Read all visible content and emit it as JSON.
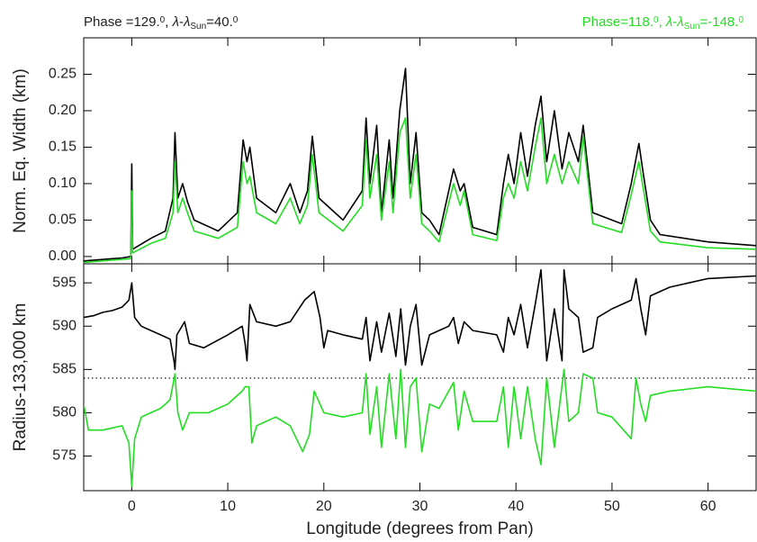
{
  "chart_data": [
    {
      "type": "line",
      "ylabel": "Norm. Eq. Width (km)",
      "annotations": [
        {
          "color": "#222222",
          "corner": "left",
          "parts": [
            {
              "text": "Phase =129."
            },
            {
              "text": "0",
              "sup": true
            },
            {
              "text": ", "
            },
            {
              "text": "λ",
              "italic": true
            },
            {
              "text": "-"
            },
            {
              "text": "λ",
              "italic": true
            },
            {
              "text": "Sun",
              "sub": true
            },
            {
              "text": "=40."
            },
            {
              "text": "0",
              "sup": true
            }
          ]
        },
        {
          "color": "#22dd22",
          "corner": "right",
          "parts": [
            {
              "text": "Phase=118."
            },
            {
              "text": "0",
              "sup": true
            },
            {
              "text": ", "
            },
            {
              "text": "λ",
              "italic": true
            },
            {
              "text": "-"
            },
            {
              "text": "λ",
              "italic": true
            },
            {
              "text": "Sun",
              "sub": true
            },
            {
              "text": "=-148."
            },
            {
              "text": "0",
              "sup": true
            }
          ]
        }
      ],
      "xlim": [
        -5,
        65
      ],
      "xticks": [
        0,
        10,
        20,
        30,
        40,
        50,
        60
      ],
      "ylim": [
        -0.01,
        0.3
      ],
      "yticks": [
        {
          "value": 0,
          "label": "0.00"
        },
        {
          "value": 0.05,
          "label": "0.05"
        },
        {
          "value": 0.1,
          "label": "0.10"
        },
        0.15,
        {
          "value": 0.2,
          "label": "0.20"
        },
        0.25
      ],
      "x": [
        -5,
        -1,
        -0.1,
        0,
        0.1,
        2,
        3.5,
        4.3,
        4.5,
        4.8,
        5.3,
        5.8,
        6.5,
        9,
        11,
        11.6,
        12,
        12.3,
        13,
        15,
        16.5,
        17.5,
        18.3,
        18.8,
        19.5,
        22,
        24,
        24.4,
        24.8,
        25.5,
        26,
        26.8,
        27.2,
        27.9,
        28.5,
        29,
        29.6,
        30.2,
        31,
        32,
        33.5,
        34.2,
        34.6,
        35.5,
        38,
        38.7,
        39.2,
        39.8,
        40.5,
        41.2,
        42,
        42.6,
        43.2,
        44,
        44.8,
        45.5,
        46.5,
        47,
        48,
        51,
        52,
        52.8,
        53.3,
        54,
        55,
        60,
        65
      ],
      "series": [
        {
          "color": "#000000",
          "values": [
            -0.006,
            -0.002,
            0.0,
            0.127,
            0.01,
            0.025,
            0.035,
            0.08,
            0.17,
            0.08,
            0.1,
            0.075,
            0.05,
            0.035,
            0.06,
            0.16,
            0.13,
            0.15,
            0.08,
            0.06,
            0.1,
            0.06,
            0.09,
            0.165,
            0.08,
            0.05,
            0.09,
            0.19,
            0.1,
            0.18,
            0.06,
            0.16,
            0.08,
            0.2,
            0.258,
            0.1,
            0.17,
            0.06,
            0.05,
            0.03,
            0.12,
            0.09,
            0.1,
            0.04,
            0.03,
            0.1,
            0.14,
            0.1,
            0.17,
            0.11,
            0.18,
            0.22,
            0.13,
            0.2,
            0.12,
            0.17,
            0.13,
            0.18,
            0.06,
            0.045,
            0.1,
            0.155,
            0.11,
            0.05,
            0.03,
            0.02,
            0.015
          ]
        },
        {
          "color": "#22dd22",
          "values": [
            -0.008,
            -0.004,
            -0.003,
            0.09,
            0.005,
            0.018,
            0.025,
            0.06,
            0.13,
            0.06,
            0.08,
            0.06,
            0.035,
            0.025,
            0.04,
            0.13,
            0.1,
            0.11,
            0.06,
            0.045,
            0.08,
            0.045,
            0.07,
            0.14,
            0.06,
            0.035,
            0.07,
            0.16,
            0.08,
            0.14,
            0.05,
            0.13,
            0.06,
            0.17,
            0.19,
            0.08,
            0.14,
            0.045,
            0.035,
            0.02,
            0.1,
            0.07,
            0.09,
            0.03,
            0.022,
            0.08,
            0.1,
            0.08,
            0.13,
            0.09,
            0.15,
            0.19,
            0.1,
            0.14,
            0.1,
            0.13,
            0.1,
            0.165,
            0.045,
            0.033,
            0.085,
            0.13,
            0.09,
            0.035,
            0.02,
            0.012,
            0.01
          ]
        }
      ]
    },
    {
      "type": "line",
      "ylabel": "Radius-133,000 km",
      "xlabel": "Longitude (degrees from Pan)",
      "xlim": [
        -5,
        65
      ],
      "xticks": [
        0,
        10,
        20,
        30,
        40,
        50,
        60
      ],
      "ylim": [
        571,
        597.2
      ],
      "yticks": [
        575,
        580,
        585,
        590,
        595
      ],
      "hline": 584,
      "series": [
        {
          "color": "#000000",
          "x": [
            -5,
            -4,
            -3,
            -2,
            -1,
            -0.3,
            0,
            0.3,
            1,
            2,
            3,
            4,
            4.4,
            4.5,
            4.7,
            5.5,
            6,
            7.5,
            10,
            11.5,
            11.8,
            12,
            12.3,
            13,
            15,
            16.5,
            18,
            19,
            19.6,
            20,
            20.4,
            22,
            24,
            24.4,
            24.8,
            25.5,
            26,
            26.8,
            27.5,
            28,
            28.5,
            29,
            29.6,
            30.2,
            31,
            32,
            33,
            33.5,
            34,
            34.6,
            35.5,
            38,
            38.7,
            39.2,
            39.8,
            40.5,
            41.2,
            42,
            42.6,
            43.2,
            44,
            44.8,
            45,
            45.5,
            46.5,
            47,
            48,
            48.5,
            50,
            52,
            52.5,
            53,
            53.5,
            54,
            56,
            58,
            60,
            65
          ],
          "values": [
            591,
            591.2,
            591.6,
            591.8,
            592.2,
            593,
            595,
            591,
            590,
            589.5,
            589,
            588.5,
            586,
            585,
            589,
            590.5,
            588,
            587.5,
            589,
            590,
            588,
            586,
            592.5,
            590.5,
            590,
            590.5,
            593,
            594,
            591,
            587.5,
            589.5,
            589,
            588.5,
            591,
            586,
            590.5,
            587,
            591.5,
            586.5,
            592,
            585.5,
            590,
            592.5,
            585.5,
            589,
            589.5,
            590,
            591,
            588,
            590.5,
            589.5,
            589,
            587,
            591,
            589,
            592.5,
            587.5,
            592.5,
            596.5,
            586,
            592,
            586,
            596.5,
            592,
            591,
            587,
            587.5,
            591,
            592,
            593,
            595.5,
            592,
            589,
            593.5,
            594.5,
            595,
            595.5,
            595.8
          ]
        },
        {
          "color": "#22dd22",
          "x": [
            -5,
            -4.5,
            -3,
            -1,
            -0.3,
            0,
            0.3,
            1,
            2,
            3,
            4,
            4.5,
            4.8,
            5.3,
            6,
            8,
            10,
            11.5,
            11.8,
            12.2,
            12.5,
            13,
            15,
            16.5,
            17.8,
            18.5,
            19,
            20,
            22,
            24,
            24.4,
            24.8,
            25.5,
            26,
            26.8,
            27.5,
            28,
            28.5,
            29,
            29.6,
            30.2,
            31,
            32,
            33.5,
            34,
            34.6,
            35.5,
            38,
            38.7,
            39.2,
            39.8,
            40.5,
            41.2,
            42,
            42.6,
            43.2,
            44,
            45,
            45.5,
            46.5,
            47,
            48,
            48.5,
            50,
            52,
            52.5,
            53,
            53.5,
            54,
            56,
            60,
            65
          ],
          "values": [
            581,
            578,
            578,
            578.5,
            576.5,
            571.5,
            577,
            579.5,
            580,
            580.5,
            581.5,
            584.5,
            580,
            578,
            580,
            580,
            581,
            582.5,
            583,
            583,
            576.5,
            578.5,
            579.5,
            578.5,
            575.5,
            577.5,
            582.5,
            580,
            579.5,
            580,
            584.5,
            577.5,
            583,
            576,
            584.5,
            577,
            585,
            576,
            583,
            584,
            575.5,
            581,
            580.5,
            583.5,
            578,
            582.5,
            579,
            579,
            583,
            576,
            583,
            577,
            583,
            577,
            574,
            584,
            576,
            585,
            579,
            580,
            584.5,
            584,
            580,
            579.5,
            577,
            584,
            581,
            579,
            582,
            582.5,
            583,
            582.5
          ]
        }
      ]
    }
  ]
}
